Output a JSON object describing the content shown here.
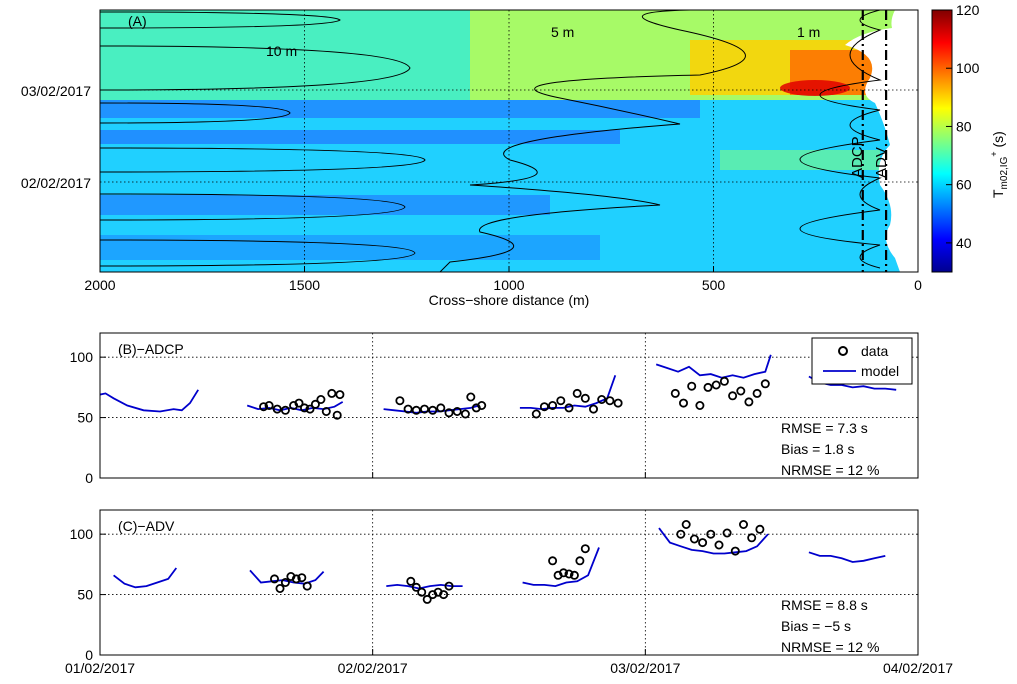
{
  "colors": {
    "colormap": [
      "#00008f",
      "#0000ff",
      "#0080ff",
      "#00ffff",
      "#80ff80",
      "#ffff00",
      "#ff8000",
      "#ff0000",
      "#800000"
    ],
    "model_line": "#0000cc",
    "data_marker": "#000000",
    "contour": "#000000"
  },
  "chart_data": [
    {
      "id": "A",
      "type": "heatmap",
      "panel_label": "(A)",
      "xlabel": "Cross−shore distance (m)",
      "xlim": [
        2000,
        0
      ],
      "x_direction": "reversed",
      "x_ticks": [
        "2000",
        "1500",
        "1000",
        "500",
        "0"
      ],
      "y_ticks": [
        "03/02/2017",
        "02/02/2017"
      ],
      "colorbar": {
        "label_main": "T",
        "label_sub": "m02,IG",
        "label_sup": "+",
        "label_unit": " (s)",
        "ticks": [
          "120",
          "100",
          "80",
          "60",
          "40"
        ],
        "range": [
          30,
          120
        ]
      },
      "contour_labels": [
        "10 m",
        "5 m",
        "1 m"
      ],
      "sensor_labels": [
        "ADCP",
        "ADV"
      ],
      "sensor_positions_m": [
        135,
        78
      ],
      "grid": true
    },
    {
      "id": "B",
      "type": "scatter",
      "panel_label": "(B)−ADCP",
      "ylim": [
        0,
        120
      ],
      "y_ticks": [
        "0",
        "50",
        "100"
      ],
      "xlim": [
        0,
        3
      ],
      "grid": true,
      "legend": {
        "placement": "top-right",
        "entries": [
          "data",
          "model"
        ]
      },
      "stats": [
        "RMSE = 7.3 s",
        "Bias = 1.8 s",
        "NRMSE = 12 %"
      ],
      "model": [
        {
          "x": [
            0.0,
            0.02,
            0.05,
            0.1,
            0.16,
            0.22,
            0.27,
            0.3,
            0.33,
            0.36
          ],
          "y": [
            69,
            70,
            66,
            60,
            56,
            55,
            57,
            56,
            62,
            73
          ]
        },
        {
          "x": [
            0.54,
            0.58,
            0.62,
            0.66,
            0.7,
            0.74,
            0.78,
            0.82,
            0.86,
            0.89
          ],
          "y": [
            60,
            57,
            58,
            56,
            58,
            56,
            58,
            57,
            59,
            63
          ]
        },
        {
          "x": [
            1.04,
            1.08,
            1.12,
            1.16,
            1.2,
            1.24,
            1.28,
            1.32,
            1.36,
            1.39
          ],
          "y": [
            57,
            56,
            55,
            54,
            55,
            55,
            56,
            57,
            58,
            60
          ]
        },
        {
          "x": [
            1.54,
            1.58,
            1.62,
            1.66,
            1.7,
            1.74,
            1.78,
            1.82,
            1.86,
            1.89
          ],
          "y": [
            58,
            58,
            57,
            58,
            58,
            60,
            59,
            62,
            66,
            85
          ]
        },
        {
          "x": [
            2.04,
            2.08,
            2.12,
            2.16,
            2.2,
            2.24,
            2.28,
            2.32,
            2.36,
            2.4,
            2.44,
            2.46
          ],
          "y": [
            94,
            91,
            88,
            92,
            85,
            86,
            83,
            85,
            83,
            86,
            88,
            102
          ]
        },
        {
          "x": [
            2.6,
            2.64,
            2.68,
            2.72,
            2.76,
            2.8,
            2.84,
            2.88,
            2.92
          ],
          "y": [
            84,
            79,
            77,
            77,
            75,
            76,
            74,
            74,
            73
          ]
        }
      ],
      "data": {
        "x": [
          0.6,
          0.62,
          0.65,
          0.68,
          0.71,
          0.73,
          0.75,
          0.77,
          0.79,
          0.81,
          0.83,
          0.85,
          0.87,
          0.88,
          1.1,
          1.13,
          1.16,
          1.19,
          1.22,
          1.25,
          1.28,
          1.31,
          1.34,
          1.36,
          1.38,
          1.4,
          1.6,
          1.63,
          1.66,
          1.69,
          1.72,
          1.75,
          1.78,
          1.81,
          1.84,
          1.87,
          1.9,
          2.11,
          2.14,
          2.17,
          2.2,
          2.23,
          2.26,
          2.29,
          2.32,
          2.35,
          2.38,
          2.41,
          2.44
        ],
        "y": [
          59,
          60,
          57,
          56,
          60,
          62,
          58,
          57,
          61,
          65,
          55,
          70,
          52,
          69,
          64,
          57,
          56,
          57,
          56,
          58,
          54,
          55,
          53,
          67,
          58,
          60,
          53,
          59,
          60,
          64,
          58,
          70,
          66,
          57,
          65,
          64,
          62,
          70,
          62,
          76,
          60,
          75,
          77,
          80,
          68,
          72,
          63,
          70,
          78
        ]
      }
    },
    {
      "id": "C",
      "type": "scatter",
      "panel_label": "(C)−ADV",
      "ylim": [
        0,
        120
      ],
      "y_ticks": [
        "0",
        "50",
        "100"
      ],
      "xlim": [
        0,
        3
      ],
      "x_ticks": [
        "01/02/2017",
        "02/02/2017",
        "03/02/2017",
        "04/02/2017"
      ],
      "grid": true,
      "stats": [
        "RMSE = 8.8 s",
        "Bias = −5 s",
        "NRMSE = 12 %"
      ],
      "model": [
        {
          "x": [
            0.05,
            0.09,
            0.13,
            0.17,
            0.21,
            0.25,
            0.28
          ],
          "y": [
            66,
            59,
            56,
            57,
            60,
            63,
            72
          ]
        },
        {
          "x": [
            0.55,
            0.59,
            0.63,
            0.67,
            0.71,
            0.75,
            0.79,
            0.82
          ],
          "y": [
            70,
            60,
            61,
            62,
            60,
            59,
            62,
            69
          ]
        },
        {
          "x": [
            1.05,
            1.09,
            1.13,
            1.17,
            1.21,
            1.25,
            1.29,
            1.33
          ],
          "y": [
            57,
            58,
            57,
            55,
            57,
            58,
            57,
            57
          ]
        },
        {
          "x": [
            1.55,
            1.59,
            1.63,
            1.67,
            1.71,
            1.75,
            1.79,
            1.83
          ],
          "y": [
            60,
            58,
            58,
            57,
            60,
            61,
            66,
            89
          ]
        },
        {
          "x": [
            2.05,
            2.09,
            2.13,
            2.17,
            2.21,
            2.25,
            2.29,
            2.33,
            2.37,
            2.41,
            2.45
          ],
          "y": [
            105,
            93,
            90,
            87,
            86,
            84,
            84,
            85,
            86,
            90,
            100
          ]
        },
        {
          "x": [
            2.6,
            2.64,
            2.68,
            2.72,
            2.76,
            2.8,
            2.84,
            2.88
          ],
          "y": [
            85,
            82,
            82,
            80,
            77,
            78,
            80,
            82
          ]
        }
      ],
      "data": {
        "x": [
          0.64,
          0.66,
          0.68,
          0.7,
          0.72,
          0.74,
          0.76,
          1.14,
          1.16,
          1.18,
          1.2,
          1.22,
          1.24,
          1.26,
          1.28,
          1.66,
          1.68,
          1.7,
          1.72,
          1.74,
          1.76,
          1.78,
          2.13,
          2.15,
          2.18,
          2.21,
          2.24,
          2.27,
          2.3,
          2.33,
          2.36,
          2.39,
          2.42
        ],
        "y": [
          63,
          55,
          60,
          65,
          63,
          64,
          57,
          61,
          56,
          52,
          46,
          50,
          52,
          50,
          57,
          78,
          66,
          68,
          67,
          66,
          78,
          88,
          100,
          108,
          96,
          93,
          100,
          91,
          101,
          86,
          108,
          97,
          104
        ]
      }
    }
  ]
}
